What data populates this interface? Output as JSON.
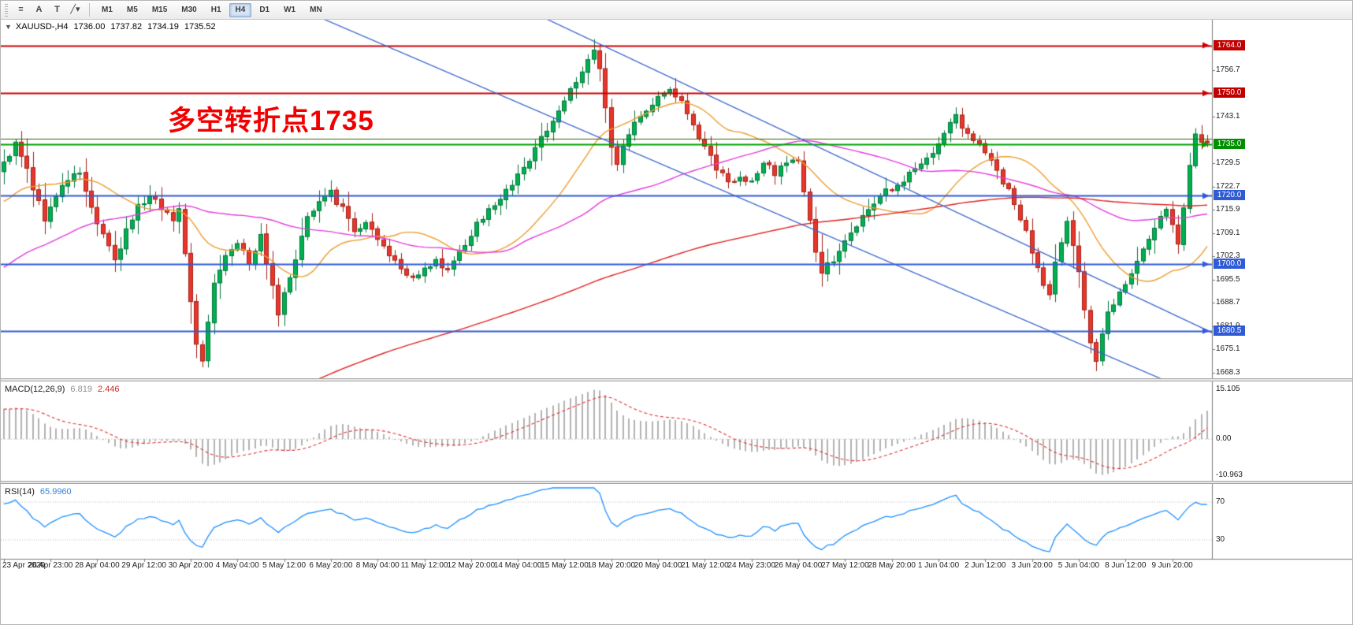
{
  "toolbar": {
    "tool_icons": [
      {
        "name": "templates",
        "glyph": "≡"
      },
      {
        "name": "text-label",
        "glyph": "A"
      },
      {
        "name": "text-tool",
        "glyph": "T"
      },
      {
        "name": "drawing-tools-dropdown",
        "glyph": "╱▾"
      }
    ],
    "timeframes": [
      "M1",
      "M5",
      "M15",
      "M30",
      "H1",
      "H4",
      "D1",
      "W1",
      "MN"
    ],
    "active_timeframe": "H4"
  },
  "chart": {
    "dropdown_glyph": "▼",
    "title_symbol": "XAUUSD-,H4",
    "ohlc": {
      "open": "1736.00",
      "high": "1737.82",
      "low": "1734.19",
      "close": "1735.52"
    },
    "annotation": {
      "text": "多空转折点1735",
      "color": "#f20000"
    }
  },
  "indicators": {
    "macd": {
      "label": "MACD(12,26,9)",
      "value_main": "6.819",
      "value_signal": "2.446",
      "axis_top": "15.105",
      "axis_zero": "0.00",
      "axis_bottom": "-10.963"
    },
    "rsi": {
      "label": "RSI(14)",
      "value": "65.9960",
      "level_top": "70",
      "level_bottom": "30"
    }
  },
  "chart_data": {
    "type": "candlestick",
    "symbol": "XAUUSD",
    "timeframe": "H4",
    "num_candles": 207,
    "label_every": 8,
    "x_labels": [
      "23 Apr 2020",
      "26 Apr 23:00",
      "28 Apr 04:00",
      "29 Apr 12:00",
      "30 Apr 20:00",
      "4 May 04:00",
      "5 May 12:00",
      "6 May 20:00",
      "8 May 04:00",
      "11 May 12:00",
      "12 May 20:00",
      "14 May 04:00",
      "15 May 12:00",
      "18 May 20:00",
      "20 May 04:00",
      "21 May 12:00",
      "24 May 23:00",
      "26 May 04:00",
      "27 May 12:00",
      "28 May 20:00",
      "1 Jun 04:00",
      "2 Jun 12:00",
      "3 Jun 20:00",
      "5 Jun 04:00",
      "8 Jun 12:00",
      "9 Jun 20:00"
    ],
    "price_axis": {
      "min": 1666.6,
      "max": 1771.5,
      "ticks": [
        1756.7,
        1743.1,
        1729.5,
        1722.7,
        1715.9,
        1709.1,
        1702.3,
        1695.5,
        1688.7,
        1681.9,
        1675.1,
        1668.3
      ]
    },
    "close_waypoints": [
      [
        0,
        1729
      ],
      [
        2,
        1736
      ],
      [
        4,
        1727
      ],
      [
        7,
        1713
      ],
      [
        10,
        1723
      ],
      [
        13,
        1727
      ],
      [
        15,
        1717
      ],
      [
        17,
        1708
      ],
      [
        19,
        1701
      ],
      [
        21,
        1710
      ],
      [
        23,
        1717
      ],
      [
        25,
        1720
      ],
      [
        27,
        1716
      ],
      [
        29,
        1713
      ],
      [
        30,
        1716
      ],
      [
        31,
        1703
      ],
      [
        32,
        1690
      ],
      [
        33,
        1677
      ],
      [
        34,
        1672
      ],
      [
        35,
        1684
      ],
      [
        36,
        1694
      ],
      [
        38,
        1702
      ],
      [
        40,
        1706
      ],
      [
        42,
        1701
      ],
      [
        44,
        1708
      ],
      [
        46,
        1694
      ],
      [
        47,
        1686
      ],
      [
        48,
        1691
      ],
      [
        50,
        1702
      ],
      [
        52,
        1713
      ],
      [
        54,
        1719
      ],
      [
        56,
        1721
      ],
      [
        58,
        1716
      ],
      [
        60,
        1709
      ],
      [
        62,
        1712
      ],
      [
        64,
        1707
      ],
      [
        66,
        1703
      ],
      [
        68,
        1699
      ],
      [
        70,
        1695
      ],
      [
        72,
        1698
      ],
      [
        74,
        1701
      ],
      [
        76,
        1699
      ],
      [
        78,
        1703
      ],
      [
        80,
        1709
      ],
      [
        82,
        1714
      ],
      [
        84,
        1718
      ],
      [
        86,
        1722
      ],
      [
        88,
        1726
      ],
      [
        90,
        1731
      ],
      [
        92,
        1737
      ],
      [
        94,
        1742
      ],
      [
        96,
        1748
      ],
      [
        98,
        1753
      ],
      [
        100,
        1760
      ],
      [
        101,
        1763
      ],
      [
        102,
        1757
      ],
      [
        103,
        1745
      ],
      [
        104,
        1734
      ],
      [
        105,
        1730
      ],
      [
        106,
        1734
      ],
      [
        108,
        1741
      ],
      [
        110,
        1745
      ],
      [
        112,
        1749
      ],
      [
        114,
        1752
      ],
      [
        116,
        1747
      ],
      [
        118,
        1741
      ],
      [
        120,
        1734
      ],
      [
        122,
        1728
      ],
      [
        124,
        1724
      ],
      [
        126,
        1726
      ],
      [
        128,
        1724
      ],
      [
        130,
        1729
      ],
      [
        132,
        1727
      ],
      [
        134,
        1730
      ],
      [
        136,
        1731
      ],
      [
        137,
        1722
      ],
      [
        138,
        1712
      ],
      [
        139,
        1704
      ],
      [
        140,
        1698
      ],
      [
        142,
        1701
      ],
      [
        144,
        1706
      ],
      [
        146,
        1711
      ],
      [
        148,
        1716
      ],
      [
        150,
        1720
      ],
      [
        152,
        1722
      ],
      [
        154,
        1725
      ],
      [
        156,
        1728
      ],
      [
        158,
        1730
      ],
      [
        160,
        1736
      ],
      [
        162,
        1741
      ],
      [
        163,
        1743
      ],
      [
        164,
        1740
      ],
      [
        166,
        1737
      ],
      [
        168,
        1733
      ],
      [
        170,
        1728
      ],
      [
        172,
        1721
      ],
      [
        174,
        1714
      ],
      [
        176,
        1704
      ],
      [
        177,
        1699
      ],
      [
        178,
        1694
      ],
      [
        179,
        1691
      ],
      [
        180,
        1700
      ],
      [
        181,
        1707
      ],
      [
        182,
        1712
      ],
      [
        183,
        1705
      ],
      [
        184,
        1697
      ],
      [
        185,
        1686
      ],
      [
        186,
        1676
      ],
      [
        187,
        1671
      ],
      [
        188,
        1680
      ],
      [
        189,
        1685
      ],
      [
        190,
        1689
      ],
      [
        192,
        1695
      ],
      [
        194,
        1701
      ],
      [
        196,
        1707
      ],
      [
        198,
        1713
      ],
      [
        199,
        1716
      ],
      [
        200,
        1711
      ],
      [
        201,
        1705
      ],
      [
        202,
        1716
      ],
      [
        203,
        1728
      ],
      [
        204,
        1738
      ],
      [
        205,
        1735
      ],
      [
        206,
        1735.52
      ]
    ],
    "prehistory": {
      "count": 200,
      "start": 1515,
      "end": 1727
    },
    "extremes": [
      {
        "i": 101,
        "high": 1765.8
      },
      {
        "i": 34,
        "low": 1669.8
      },
      {
        "i": 187,
        "low": 1669.5
      }
    ],
    "current_candle": {
      "open": 1736.0,
      "high": 1737.82,
      "low": 1734.19,
      "close": 1735.52
    },
    "horizontal_lines": [
      {
        "price": 1764.0,
        "color": "#cc0000",
        "width": 2,
        "label": "1764.0",
        "badge": "#c00000"
      },
      {
        "price": 1750.0,
        "color": "#cc0000",
        "width": 2,
        "label": "1750.0",
        "badge": "#c00000"
      },
      {
        "price": 1736.6,
        "color": "#336600",
        "width": 1,
        "label": ""
      },
      {
        "price": 1735.0,
        "color": "#00a000",
        "width": 2,
        "label": "1735.0",
        "badge": "#008f00"
      },
      {
        "price": 1720.0,
        "color": "#2f5bd7",
        "width": 2,
        "label": "1720.0",
        "badge": "#2f5bd7"
      },
      {
        "price": 1700.0,
        "color": "#2f5bd7",
        "width": 2,
        "label": "1700.0",
        "badge": "#2f5bd7"
      },
      {
        "price": 1680.5,
        "color": "#2f5bd7",
        "width": 2,
        "label": "1680.5",
        "badge": "#2f5bd7"
      }
    ],
    "trend_lines": [
      {
        "from": [
          55,
          1771.5
        ],
        "to": [
          196,
          1668.0
        ],
        "color": "#3a66cc"
      },
      {
        "from": [
          100,
          1766.0
        ],
        "to": [
          208,
          1679.0
        ],
        "color": "#3a66cc"
      }
    ],
    "moving_averages": [
      {
        "period": 21,
        "color": "#eb9d2f"
      },
      {
        "period": 55,
        "color": "#e23ddd"
      },
      {
        "period": 200,
        "color": "#e02222"
      }
    ],
    "macd_scale": {
      "max": 15.105,
      "min": -10.963
    },
    "rsi_levels": [
      70,
      30
    ],
    "candle_colors": {
      "up": "#00b050",
      "up_stroke": "#00743a",
      "down": "#e8362b",
      "down_stroke": "#a21f16"
    },
    "seed": 777
  }
}
